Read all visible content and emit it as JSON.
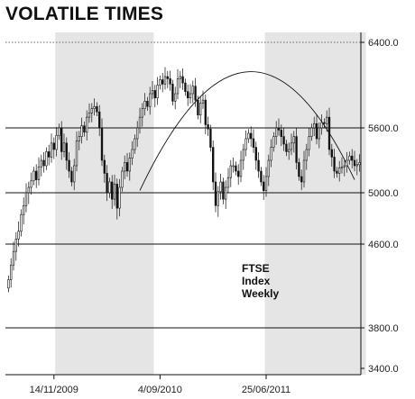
{
  "chart_data": {
    "type": "candlestick",
    "title": "VOLATILE TIMES",
    "annotation": [
      "FTSE",
      "Index",
      "Weekly"
    ],
    "ylim": [
      3400,
      6450
    ],
    "yticks": [
      3400,
      3800,
      4600,
      5000,
      5600,
      6400
    ],
    "ytick_labels": [
      "3400.0",
      "3800.0",
      "4600.0",
      "5000.0",
      "5600.0",
      "6400.0"
    ],
    "solid_lines": [
      3800,
      4600,
      5000,
      5600
    ],
    "dotted_lines": [
      6400
    ],
    "xticks": [
      {
        "label": "14/11/2009",
        "week": 18
      },
      {
        "label": "4/09/2010",
        "week": 60
      },
      {
        "label": "25/06/2011",
        "week": 102
      }
    ],
    "shaded_week_ranges": [
      [
        19,
        57
      ],
      [
        102,
        141
      ]
    ],
    "arc": {
      "start": [
        52,
        5020
      ],
      "peak": [
        95,
        6125
      ],
      "end": [
        137,
        5120
      ]
    },
    "colors": {
      "candle": "#111111",
      "shade": "#e5e5e5",
      "line": "#111111"
    },
    "weekly_close": [
      4260,
      4400,
      4530,
      4640,
      4700,
      4830,
      4900,
      5000,
      5050,
      5110,
      5200,
      5120,
      5240,
      5300,
      5250,
      5380,
      5330,
      5460,
      5400,
      5530,
      5600,
      5380,
      5460,
      5300,
      5200,
      5100,
      5250,
      5480,
      5520,
      5620,
      5560,
      5700,
      5740,
      5780,
      5800,
      5750,
      5600,
      5300,
      5180,
      5000,
      5100,
      4950,
      5080,
      4880,
      5050,
      5200,
      5280,
      5200,
      5320,
      5400,
      5500,
      5600,
      5700,
      5780,
      5850,
      5800,
      5920,
      5950,
      5880,
      6000,
      6050,
      6010,
      6080,
      6060,
      6010,
      5850,
      5920,
      6060,
      6080,
      6020,
      5940,
      5880,
      5920,
      5990,
      5860,
      5720,
      5830,
      5860,
      5630,
      5590,
      5420,
      5100,
      4900,
      5010,
      5100,
      4950,
      5050,
      5140,
      5250,
      5250,
      5200,
      5150,
      5300,
      5400,
      5500,
      5550,
      5500,
      5420,
      5300,
      5200,
      5100,
      5020,
      5150,
      5300,
      5420,
      5520,
      5600,
      5580,
      5520,
      5450,
      5380,
      5400,
      5460,
      5520,
      5280,
      5150,
      5100,
      5300,
      5400,
      5520,
      5600,
      5640,
      5500,
      5600,
      5650,
      5640,
      5700,
      5400,
      5330,
      5200,
      5180,
      5230,
      5240,
      5250,
      5300,
      5340,
      5300,
      5250,
      5260,
      5280
    ]
  }
}
